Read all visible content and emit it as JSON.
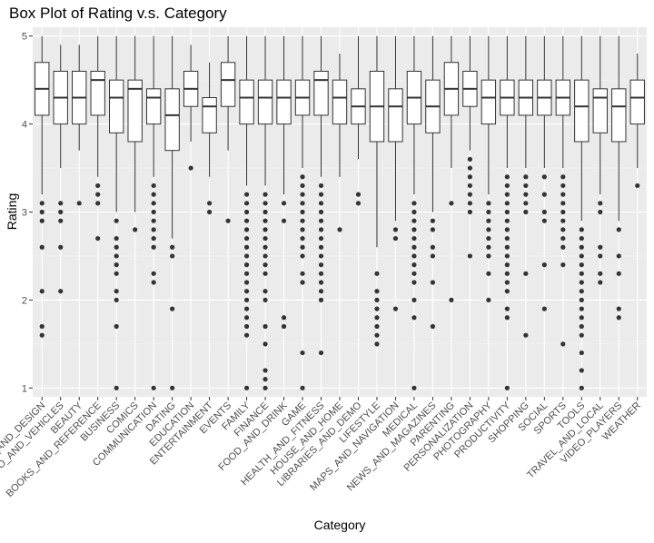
{
  "chart_data": {
    "type": "boxplot",
    "title": "Box Plot of Rating v.s. Category",
    "xlabel": "Category",
    "ylabel": "Rating",
    "ylim": [
      0.9,
      5.1
    ],
    "yticks": [
      1,
      2,
      3,
      4,
      5
    ],
    "grid": true,
    "legend": "none",
    "colors": {
      "panel": "#ebebeb",
      "grid_major": "#ffffff",
      "grid_minor": "#f5f5f5",
      "box_fill": "#ffffff",
      "line": "#333333",
      "point": "#333333"
    },
    "categories": [
      "ART_AND_DESIGN",
      "AUTO_AND_VEHICLES",
      "BEAUTY",
      "BOOKS_AND_REFERENCE",
      "BUSINESS",
      "COMICS",
      "COMMUNICATION",
      "DATING",
      "EDUCATION",
      "ENTERTAINMENT",
      "EVENTS",
      "FAMILY",
      "FINANCE",
      "FOOD_AND_DRINK",
      "GAME",
      "HEALTH_AND_FITNESS",
      "HOUSE_AND_HOME",
      "LIBRARIES_AND_DEMO",
      "LIFESTYLE",
      "MAPS_AND_NAVIGATION",
      "MEDICAL",
      "NEWS_AND_MAGAZINES",
      "PARENTING",
      "PERSONALIZATION",
      "PHOTOGRAPHY",
      "PRODUCTIVITY",
      "SHOPPING",
      "SOCIAL",
      "SPORTS",
      "TOOLS",
      "TRAVEL_AND_LOCAL",
      "VIDEO_PLAYERS",
      "WEATHER"
    ],
    "x_tick_labels": [
      "ART_AND_DESIGN",
      "AUTO_AND_VEHICLES",
      "BEAUTY",
      "BOOKS_AND_REFERENCE",
      "BUSINESS",
      "COMICS",
      "COMMUNICATION",
      "DATING",
      "EDUCATION",
      "ENTERTAINMENT",
      "EVENTS",
      "FAMILY",
      "FINANCE",
      "FOOD_AND_DRINK",
      "GAME",
      "HEALTH_AND_FITNESS",
      "HOUSE_AND_HOME",
      "LIBRARIES_AND_DEMO",
      "LIFESTYLE",
      "MAPS_AND_NAVIGATION",
      "MEDICAL",
      "NEWS_AND_MAGAZINES",
      "PARENTING",
      "PERSONALIZATION",
      "PHOTOGRAPHY",
      "PRODUCTIVITY",
      "SHOPPING",
      "SOCIAL",
      "SPORTS",
      "TOOLS",
      "TRAVEL_AND_LOCAL",
      "VIDEO_PLAYERS",
      "WEATHER"
    ],
    "boxes": [
      {
        "category": "ART_AND_DESIGN",
        "whisker_low": 3.2,
        "q1": 4.1,
        "median": 4.4,
        "q3": 4.7,
        "whisker_high": 5.0,
        "outliers": [
          3.1,
          3.0,
          2.9,
          2.6,
          2.1,
          1.7,
          1.6
        ]
      },
      {
        "category": "AUTO_AND_VEHICLES",
        "whisker_low": 3.5,
        "q1": 4.0,
        "median": 4.3,
        "q3": 4.6,
        "whisker_high": 4.9,
        "outliers": [
          3.1,
          3.0,
          2.9,
          2.6,
          2.1
        ]
      },
      {
        "category": "BEAUTY",
        "whisker_low": 3.7,
        "q1": 4.0,
        "median": 4.3,
        "q3": 4.6,
        "whisker_high": 4.9,
        "outliers": [
          3.1
        ]
      },
      {
        "category": "BOOKS_AND_REFERENCE",
        "whisker_low": 3.4,
        "q1": 4.1,
        "median": 4.5,
        "q3": 4.6,
        "whisker_high": 5.0,
        "outliers": [
          3.3,
          3.2,
          3.1,
          2.7
        ]
      },
      {
        "category": "BUSINESS",
        "whisker_low": 3.0,
        "q1": 3.9,
        "median": 4.3,
        "q3": 4.5,
        "whisker_high": 5.0,
        "outliers": [
          2.9,
          2.7,
          2.6,
          2.5,
          2.4,
          2.3,
          2.1,
          2.0,
          1.7,
          1.0
        ]
      },
      {
        "category": "COMICS",
        "whisker_low": 3.0,
        "q1": 3.8,
        "median": 4.4,
        "q3": 4.5,
        "whisker_high": 5.0,
        "outliers": [
          2.8
        ]
      },
      {
        "category": "COMMUNICATION",
        "whisker_low": 3.4,
        "q1": 4.0,
        "median": 4.3,
        "q3": 4.4,
        "whisker_high": 5.0,
        "outliers": [
          3.3,
          3.2,
          3.1,
          3.0,
          2.9,
          2.8,
          2.7,
          2.6,
          2.3,
          2.2,
          1.0
        ]
      },
      {
        "category": "DATING",
        "whisker_low": 2.7,
        "q1": 3.7,
        "median": 4.1,
        "q3": 4.4,
        "whisker_high": 5.0,
        "outliers": [
          2.6,
          2.5,
          1.9,
          1.0
        ]
      },
      {
        "category": "EDUCATION",
        "whisker_low": 3.8,
        "q1": 4.2,
        "median": 4.4,
        "q3": 4.6,
        "whisker_high": 4.9,
        "outliers": [
          3.5
        ]
      },
      {
        "category": "ENTERTAINMENT",
        "whisker_low": 3.4,
        "q1": 3.9,
        "median": 4.2,
        "q3": 4.3,
        "whisker_high": 4.7,
        "outliers": [
          3.1,
          3.0
        ]
      },
      {
        "category": "EVENTS",
        "whisker_low": 3.7,
        "q1": 4.2,
        "median": 4.5,
        "q3": 4.7,
        "whisker_high": 5.0,
        "outliers": [
          2.9
        ]
      },
      {
        "category": "FAMILY",
        "whisker_low": 3.3,
        "q1": 4.0,
        "median": 4.3,
        "q3": 4.5,
        "whisker_high": 5.0,
        "outliers": [
          3.2,
          3.1,
          3.0,
          2.9,
          2.8,
          2.7,
          2.6,
          2.5,
          2.4,
          2.3,
          2.2,
          2.1,
          2.0,
          1.9,
          1.8,
          1.7,
          1.6,
          1.0
        ]
      },
      {
        "category": "FINANCE",
        "whisker_low": 3.3,
        "q1": 4.0,
        "median": 4.3,
        "q3": 4.5,
        "whisker_high": 5.0,
        "outliers": [
          3.2,
          3.1,
          3.0,
          2.9,
          2.8,
          2.7,
          2.6,
          2.5,
          2.4,
          2.3,
          2.1,
          2.0,
          1.7,
          1.5,
          1.2,
          1.1,
          1.0
        ]
      },
      {
        "category": "FOOD_AND_DRINK",
        "whisker_low": 3.2,
        "q1": 4.0,
        "median": 4.3,
        "q3": 4.5,
        "whisker_high": 5.0,
        "outliers": [
          3.1,
          2.9,
          1.8,
          1.7
        ]
      },
      {
        "category": "GAME",
        "whisker_low": 3.5,
        "q1": 4.1,
        "median": 4.3,
        "q3": 4.5,
        "whisker_high": 5.0,
        "outliers": [
          3.4,
          3.3,
          3.2,
          3.1,
          3.0,
          2.9,
          2.8,
          2.7,
          2.6,
          2.5,
          2.3,
          2.2,
          1.4,
          1.0
        ]
      },
      {
        "category": "HEALTH_AND_FITNESS",
        "whisker_low": 3.4,
        "q1": 4.1,
        "median": 4.5,
        "q3": 4.6,
        "whisker_high": 5.0,
        "outliers": [
          3.3,
          3.2,
          3.1,
          3.0,
          2.9,
          2.8,
          2.7,
          2.6,
          2.5,
          2.4,
          2.3,
          2.2,
          2.1,
          2.0,
          1.4
        ]
      },
      {
        "category": "HOUSE_AND_HOME",
        "whisker_low": 3.4,
        "q1": 4.0,
        "median": 4.3,
        "q3": 4.5,
        "whisker_high": 4.8,
        "outliers": [
          2.8
        ]
      },
      {
        "category": "LIBRARIES_AND_DEMO",
        "whisker_low": 3.6,
        "q1": 4.0,
        "median": 4.2,
        "q3": 4.4,
        "whisker_high": 5.0,
        "outliers": [
          3.2,
          3.1
        ]
      },
      {
        "category": "LIFESTYLE",
        "whisker_low": 2.6,
        "q1": 3.8,
        "median": 4.2,
        "q3": 4.6,
        "whisker_high": 5.0,
        "outliers": [
          2.3,
          2.1,
          2.0,
          1.9,
          1.8,
          1.7,
          1.6,
          1.5
        ]
      },
      {
        "category": "MAPS_AND_NAVIGATION",
        "whisker_low": 2.9,
        "q1": 3.8,
        "median": 4.2,
        "q3": 4.4,
        "whisker_high": 5.0,
        "outliers": [
          2.8,
          2.7,
          1.9
        ]
      },
      {
        "category": "MEDICAL",
        "whisker_low": 3.2,
        "q1": 4.0,
        "median": 4.3,
        "q3": 4.6,
        "whisker_high": 5.0,
        "outliers": [
          3.1,
          3.0,
          2.9,
          2.8,
          2.7,
          2.6,
          2.5,
          2.4,
          2.3,
          2.2,
          2.0,
          1.8,
          1.0
        ]
      },
      {
        "category": "NEWS_AND_MAGAZINES",
        "whisker_low": 3.0,
        "q1": 3.9,
        "median": 4.2,
        "q3": 4.5,
        "whisker_high": 5.0,
        "outliers": [
          2.9,
          2.8,
          2.6,
          2.5,
          2.2,
          1.7
        ]
      },
      {
        "category": "PARENTING",
        "whisker_low": 3.5,
        "q1": 4.1,
        "median": 4.4,
        "q3": 4.7,
        "whisker_high": 5.0,
        "outliers": [
          3.1,
          2.0
        ]
      },
      {
        "category": "PERSONALIZATION",
        "whisker_low": 3.7,
        "q1": 4.2,
        "median": 4.4,
        "q3": 4.6,
        "whisker_high": 5.0,
        "outliers": [
          3.6,
          3.5,
          3.4,
          3.3,
          3.2,
          3.1,
          3.0,
          2.5
        ]
      },
      {
        "category": "PHOTOGRAPHY",
        "whisker_low": 3.2,
        "q1": 4.0,
        "median": 4.3,
        "q3": 4.5,
        "whisker_high": 5.0,
        "outliers": [
          3.1,
          3.0,
          2.9,
          2.8,
          2.7,
          2.6,
          2.5,
          2.3,
          2.0
        ]
      },
      {
        "category": "PRODUCTIVITY",
        "whisker_low": 3.5,
        "q1": 4.1,
        "median": 4.3,
        "q3": 4.5,
        "whisker_high": 5.0,
        "outliers": [
          3.4,
          3.3,
          3.2,
          3.1,
          3.0,
          2.9,
          2.8,
          2.7,
          2.6,
          2.5,
          2.4,
          2.3,
          2.2,
          2.1,
          1.9,
          1.8,
          1.0
        ]
      },
      {
        "category": "SHOPPING",
        "whisker_low": 3.5,
        "q1": 4.1,
        "median": 4.3,
        "q3": 4.5,
        "whisker_high": 5.0,
        "outliers": [
          3.4,
          3.3,
          3.2,
          3.1,
          3.0,
          2.3,
          1.6
        ]
      },
      {
        "category": "SOCIAL",
        "whisker_low": 3.5,
        "q1": 4.1,
        "median": 4.3,
        "q3": 4.5,
        "whisker_high": 5.0,
        "outliers": [
          3.4,
          3.2,
          3.0,
          2.9,
          2.4,
          1.9
        ]
      },
      {
        "category": "SPORTS",
        "whisker_low": 3.5,
        "q1": 4.1,
        "median": 4.3,
        "q3": 4.5,
        "whisker_high": 5.0,
        "outliers": [
          3.4,
          3.3,
          3.2,
          3.1,
          3.0,
          2.9,
          2.8,
          2.7,
          2.6,
          2.4,
          1.5
        ]
      },
      {
        "category": "TOOLS",
        "whisker_low": 2.9,
        "q1": 3.8,
        "median": 4.2,
        "q3": 4.5,
        "whisker_high": 5.0,
        "outliers": [
          2.8,
          2.7,
          2.6,
          2.5,
          2.4,
          2.3,
          2.2,
          2.1,
          2.0,
          1.9,
          1.8,
          1.7,
          1.6,
          1.4,
          1.2,
          1.0
        ]
      },
      {
        "category": "TRAVEL_AND_LOCAL",
        "whisker_low": 3.2,
        "q1": 3.9,
        "median": 4.3,
        "q3": 4.4,
        "whisker_high": 5.0,
        "outliers": [
          3.1,
          3.0,
          2.6,
          2.5,
          2.3,
          2.2
        ]
      },
      {
        "category": "VIDEO_PLAYERS",
        "whisker_low": 2.9,
        "q1": 3.8,
        "median": 4.2,
        "q3": 4.4,
        "whisker_high": 5.0,
        "outliers": [
          2.8,
          2.5,
          2.3,
          1.9,
          1.8
        ]
      },
      {
        "category": "WEATHER",
        "whisker_low": 3.5,
        "q1": 4.0,
        "median": 4.3,
        "q3": 4.5,
        "whisker_high": 4.8,
        "outliers": [
          3.3
        ]
      }
    ]
  }
}
